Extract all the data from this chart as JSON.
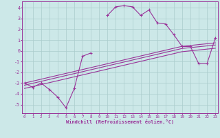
{
  "xlabel": "Windchill (Refroidissement éolien,°C)",
  "bg_color": "#cce8e8",
  "grid_color": "#aacccc",
  "line_color": "#993399",
  "spine_color": "#993399",
  "x_data": [
    0,
    1,
    2,
    3,
    4,
    5,
    6,
    7,
    8,
    9,
    10,
    11,
    12,
    13,
    14,
    15,
    16,
    17,
    18,
    19,
    20,
    21,
    22,
    23
  ],
  "y_jagged": [
    -3.0,
    -3.4,
    -3.0,
    -3.6,
    -4.3,
    -5.3,
    -3.5,
    -0.5,
    -0.2,
    null,
    3.3,
    4.1,
    4.2,
    4.1,
    3.3,
    3.8,
    2.6,
    2.5,
    1.5,
    0.4,
    0.4,
    -1.2,
    -1.2,
    1.2
  ],
  "y_lin1": [
    -3.0,
    -2.82,
    -2.64,
    -2.46,
    -2.28,
    -2.1,
    -1.92,
    -1.74,
    -1.56,
    -1.38,
    -1.2,
    -1.02,
    -0.84,
    -0.66,
    -0.48,
    -0.3,
    -0.12,
    0.06,
    0.24,
    0.42,
    0.5,
    0.58,
    0.66,
    0.74
  ],
  "y_lin2": [
    -3.2,
    -3.02,
    -2.84,
    -2.66,
    -2.48,
    -2.3,
    -2.12,
    -1.94,
    -1.76,
    -1.58,
    -1.4,
    -1.22,
    -1.04,
    -0.86,
    -0.68,
    -0.5,
    -0.32,
    -0.14,
    0.04,
    0.22,
    0.3,
    0.38,
    0.46,
    0.54
  ],
  "y_lin3": [
    -3.5,
    -3.32,
    -3.14,
    -2.96,
    -2.78,
    -2.6,
    -2.42,
    -2.24,
    -2.06,
    -1.88,
    -1.7,
    -1.52,
    -1.34,
    -1.16,
    -0.98,
    -0.8,
    -0.62,
    -0.44,
    -0.26,
    -0.08,
    0.0,
    0.08,
    0.16,
    0.24
  ],
  "ylim": [
    -5.8,
    4.6
  ],
  "xlim": [
    -0.3,
    23.3
  ],
  "yticks": [
    -5,
    -4,
    -3,
    -2,
    -1,
    0,
    1,
    2,
    3,
    4
  ],
  "xticks": [
    0,
    1,
    2,
    3,
    4,
    5,
    6,
    7,
    8,
    9,
    10,
    11,
    12,
    13,
    14,
    15,
    16,
    17,
    18,
    19,
    20,
    21,
    22,
    23
  ]
}
